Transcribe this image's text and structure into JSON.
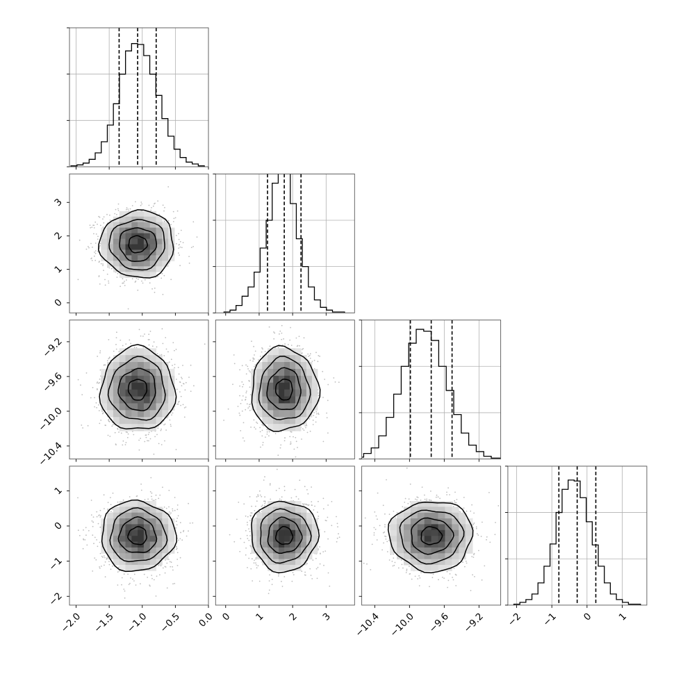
{
  "chart_data": {
    "type": "corner",
    "parameters": [
      {
        "range": [
          -2.1,
          0.0
        ],
        "ticks": [
          -2.0,
          -1.5,
          -1.0,
          -0.5,
          0.0
        ],
        "tick_labels": [
          "−2.0",
          "−1.5",
          "−1.0",
          "−0.5",
          "0.0"
        ],
        "quantiles": [
          -1.35,
          -1.07,
          -0.79
        ],
        "mean": -1.07,
        "sigma": 0.28
      },
      {
        "range": [
          -0.3,
          3.85
        ],
        "ticks": [
          0,
          1,
          2,
          3
        ],
        "tick_labels": [
          "0",
          "1",
          "2",
          "3"
        ],
        "quantiles": [
          1.25,
          1.75,
          2.25
        ],
        "mean": 1.75,
        "sigma": 0.5
      },
      {
        "range": [
          -10.55,
          -8.95
        ],
        "ticks": [
          -10.4,
          -10.0,
          -9.6,
          -9.2
        ],
        "tick_labels": [
          "−10.4",
          "−10.0",
          "−9.6",
          "−9.2"
        ],
        "quantiles": [
          -9.99,
          -9.75,
          -9.51
        ],
        "mean": -9.75,
        "sigma": 0.24
      },
      {
        "range": [
          -2.25,
          1.7
        ],
        "ticks": [
          -2,
          -1,
          0,
          1
        ],
        "tick_labels": [
          "−2",
          "−1",
          "0",
          "1"
        ],
        "quantiles": [
          -0.8,
          -0.28,
          0.25
        ],
        "mean": -0.28,
        "sigma": 0.5
      }
    ],
    "histograms": [
      [
        1,
        2,
        4,
        8,
        15,
        27,
        45,
        68,
        100,
        125,
        133,
        132,
        120,
        100,
        77,
        52,
        33,
        19,
        10,
        5,
        3,
        1
      ],
      [
        1,
        3,
        8,
        18,
        28,
        44,
        70,
        100,
        140,
        158,
        152,
        118,
        80,
        50,
        28,
        14,
        6,
        3,
        1,
        1
      ],
      [
        2,
        6,
        12,
        25,
        45,
        70,
        100,
        125,
        140,
        138,
        128,
        100,
        74,
        48,
        28,
        15,
        8,
        3,
        1,
        1
      ],
      [
        1,
        3,
        6,
        12,
        24,
        42,
        66,
        100,
        125,
        135,
        134,
        116,
        90,
        65,
        42,
        24,
        12,
        6,
        3,
        1,
        1
      ]
    ],
    "hist_ylim": [
      0,
      150
    ],
    "hist_ticks": [
      0,
      50,
      100,
      150
    ],
    "quantile_style": "dashed",
    "grid": true,
    "contour_levels": [
      0.5,
      1.0,
      1.5,
      2.0
    ],
    "title": "",
    "xlabel": "",
    "ylabel": ""
  }
}
